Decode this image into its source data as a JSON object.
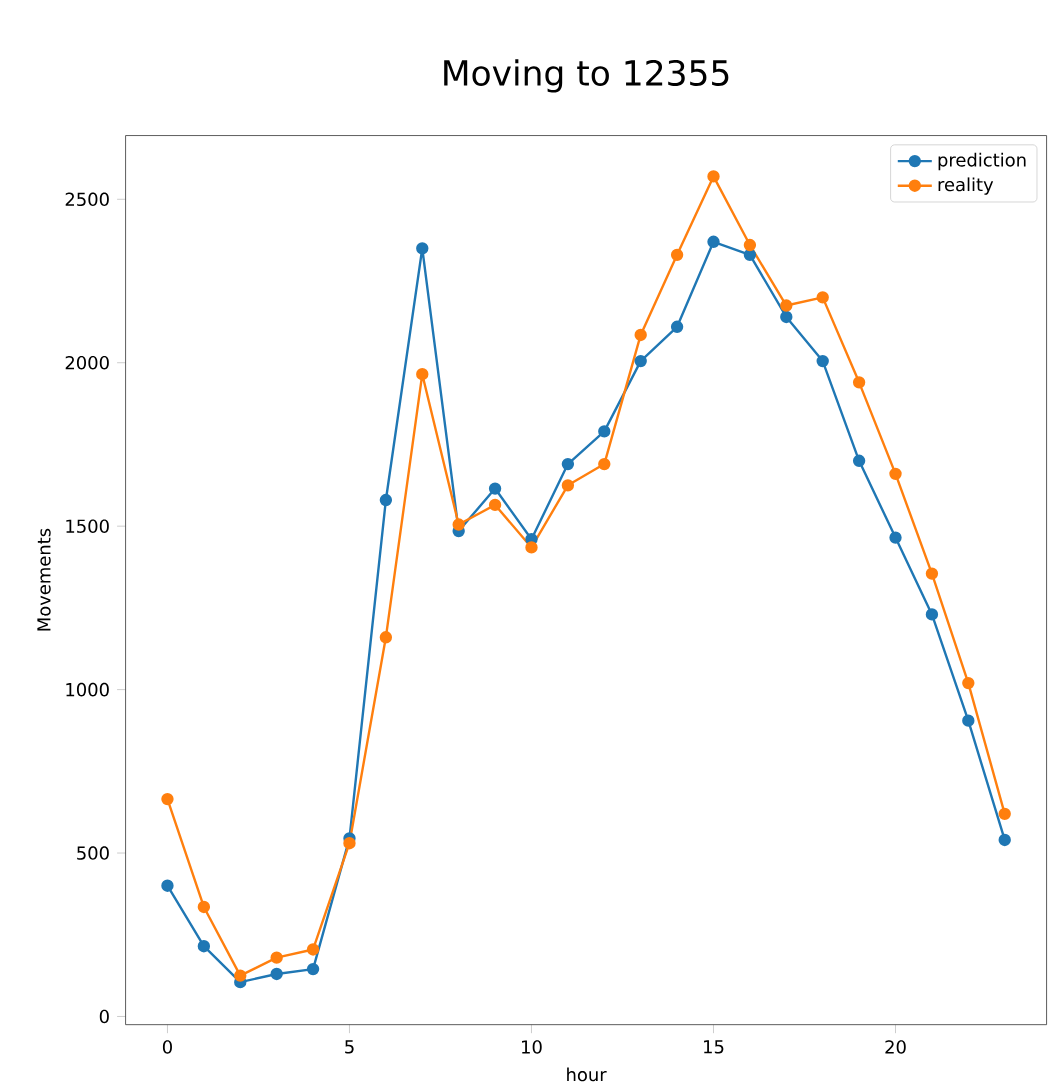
{
  "chart_data": {
    "type": "line",
    "title": "Moving to 12355",
    "xlabel": "hour",
    "ylabel": "Movements",
    "x": [
      0,
      1,
      2,
      3,
      4,
      5,
      6,
      7,
      8,
      9,
      10,
      11,
      12,
      13,
      14,
      15,
      16,
      17,
      18,
      19,
      20,
      21,
      22,
      23
    ],
    "series": [
      {
        "name": "prediction",
        "color": "#1f77b4",
        "values": [
          400,
          215,
          105,
          130,
          145,
          545,
          1580,
          2350,
          1485,
          1615,
          1460,
          1690,
          1790,
          2005,
          2110,
          2370,
          2330,
          2140,
          2005,
          1700,
          1465,
          1230,
          905,
          540
        ]
      },
      {
        "name": "reality",
        "color": "#ff7f0e",
        "values": [
          665,
          335,
          125,
          180,
          205,
          530,
          1160,
          1965,
          1505,
          1565,
          1435,
          1625,
          1690,
          2085,
          2330,
          2570,
          2360,
          2175,
          2200,
          1940,
          1660,
          1355,
          1020,
          620
        ]
      }
    ],
    "xlim": [
      -1.15,
      24.15
    ],
    "ylim": [
      -25,
      2695
    ],
    "xticks": [
      0,
      5,
      10,
      15,
      20
    ],
    "yticks": [
      0,
      500,
      1000,
      1500,
      2000,
      2500
    ],
    "legend": "top right",
    "marker": "circle",
    "line_style": "solid",
    "grid": false
  }
}
